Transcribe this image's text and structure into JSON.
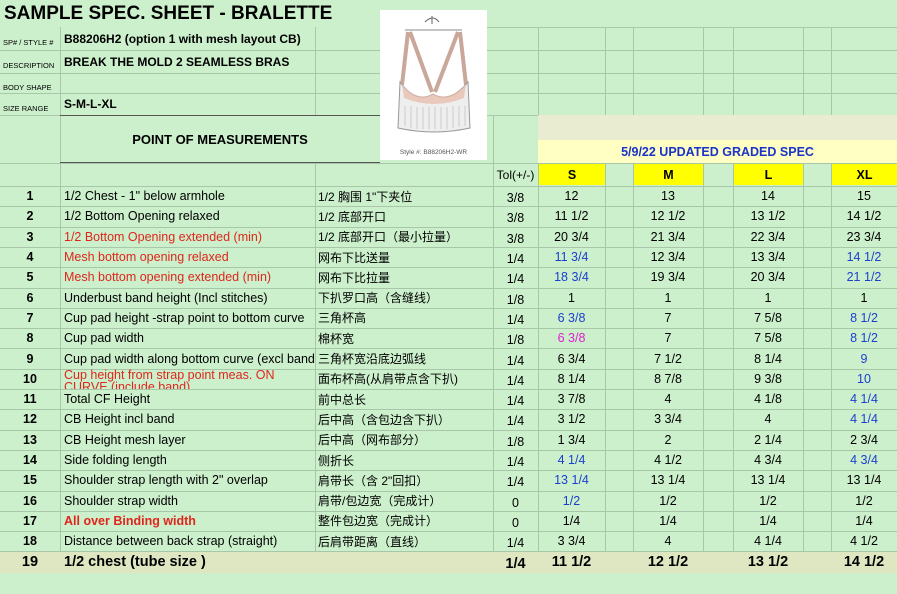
{
  "title": "SAMPLE SPEC. SHEET - BRALETTE",
  "info": [
    {
      "label": "SP# / STYLE #",
      "value": "B88206H2  (option 1 with mesh layout CB)"
    },
    {
      "label": "DESCRIPTION",
      "value": "BREAK THE MOLD 2 SEAMLESS BRAS"
    },
    {
      "label": "BODY SHAPE"
    },
    {
      "label": "SIZE RANGE",
      "value": "S-M-L-XL"
    }
  ],
  "image_caption": "Style #: B88206H2-WR",
  "pom_header": "POINT OF MEASUREMENTS",
  "graded_note": "5/9/22 UPDATED GRADED SPEC",
  "tol_header": "Tol(+/-)",
  "sizes": [
    "S",
    "M",
    "L",
    "XL"
  ],
  "rows": [
    {
      "no": "1",
      "en": "1/2 Chest - 1\" below armhole",
      "cn": "1/2 胸围 1\"下夹位",
      "tol": "3/8",
      "values": [
        "12",
        "13",
        "14",
        "15"
      ]
    },
    {
      "no": "2",
      "en": "1/2 Bottom Opening relaxed",
      "cn": "1/2 底部开口",
      "tol": "3/8",
      "values": [
        "11 1/2",
        "12 1/2",
        "13 1/2",
        "14 1/2"
      ]
    },
    {
      "no": "3",
      "en": "1/2 Bottom Opening extended (min)",
      "cn": "1/2 底部开口（最小拉量）",
      "tol": "3/8",
      "values": [
        "20 3/4",
        "21 3/4",
        "22 3/4",
        "23 3/4"
      ],
      "en_color": "#e0261c"
    },
    {
      "no": "4",
      "en": "Mesh bottom opening relaxed",
      "cn": "网布下比送量",
      "tol": "1/4",
      "values": [
        "11 3/4",
        "12 3/4",
        "13 3/4",
        "14 1/2"
      ],
      "en_color": "#e0261c",
      "value_colors": [
        "#1c3fd0",
        null,
        null,
        "#1c3fd0"
      ]
    },
    {
      "no": "5",
      "en": "Mesh bottom opening extended (min)",
      "cn": "网布下比拉量",
      "tol": "1/4",
      "values": [
        "18 3/4",
        "19 3/4",
        "20 3/4",
        "21 1/2"
      ],
      "en_color": "#e0261c",
      "value_colors": [
        "#1c3fd0",
        null,
        null,
        "#1c3fd0"
      ]
    },
    {
      "no": "6",
      "en": "Underbust band height (Incl stitches)",
      "cn": "下扒罗口高（含缝线）",
      "tol": "1/8",
      "values": [
        "1",
        "1",
        "1",
        "1"
      ]
    },
    {
      "no": "7",
      "en": "Cup pad height -strap point to bottom curve",
      "cn": "三角杯高",
      "tol": "1/4",
      "values": [
        "6 3/8",
        "7",
        "7 5/8",
        "8 1/2"
      ],
      "value_colors": [
        "#1c3fd0",
        null,
        null,
        "#1c3fd0"
      ]
    },
    {
      "no": "8",
      "en": "Cup pad width",
      "cn": "棉杯宽",
      "tol": "1/8",
      "values": [
        "6 3/8",
        "7",
        "7 5/8",
        "8 1/2"
      ],
      "value_colors": [
        "#e020d0",
        null,
        null,
        "#1c3fd0"
      ]
    },
    {
      "no": "9",
      "en": "Cup pad width along bottom curve (excl band)",
      "cn": "三角杯宽沿底边弧线",
      "tol": "1/4",
      "values": [
        "6 3/4",
        "7 1/2",
        "8 1/4",
        "9"
      ],
      "value_colors": [
        null,
        null,
        null,
        "#1c3fd0"
      ]
    },
    {
      "no": "10",
      "en": "Cup height from strap point  meas. ON CURVE (include band)",
      "cn": "面布杯高(从肩带点含下扒)",
      "tol": "1/4",
      "values": [
        "8 1/4",
        "8 7/8",
        "9 3/8",
        "10"
      ],
      "en_color": "#e0261c",
      "value_colors": [
        null,
        null,
        null,
        "#1c3fd0"
      ]
    },
    {
      "no": "11",
      "en": "Total CF Height",
      "cn": "前中总长",
      "tol": "1/4",
      "values": [
        "3 7/8",
        "4",
        "4 1/8",
        "4 1/4"
      ],
      "value_colors": [
        null,
        null,
        null,
        "#1c3fd0"
      ]
    },
    {
      "no": "12",
      "en": "CB Height incl band",
      "cn": "后中高（含包边含下扒）",
      "tol": "1/4",
      "values": [
        "3 1/2",
        "3 3/4",
        "4",
        "4 1/4"
      ],
      "value_colors": [
        null,
        null,
        null,
        "#1c3fd0"
      ]
    },
    {
      "no": "13",
      "en": "CB Height mesh layer",
      "cn": "后中高（网布部分）",
      "tol": "1/8",
      "values": [
        "1 3/4",
        "2",
        "2 1/4",
        "2 3/4"
      ]
    },
    {
      "no": "14",
      "en": "Side folding length",
      "cn": "侧折长",
      "tol": "1/4",
      "values": [
        "4 1/4",
        "4 1/2",
        "4 3/4",
        "4 3/4"
      ],
      "value_colors": [
        "#1c3fd0",
        null,
        null,
        "#1c3fd0"
      ]
    },
    {
      "no": "15",
      "en": "Shoulder strap length with 2\" overlap",
      "cn": "肩带长（含 2\"回扣）",
      "tol": "1/4",
      "values": [
        "13 1/4",
        "13 1/4",
        "13 1/4",
        "13 1/4"
      ],
      "value_colors": [
        "#1c3fd0",
        null,
        null,
        null
      ]
    },
    {
      "no": "16",
      "en": "Shoulder strap width",
      "cn": "肩带/包边宽（完成计）",
      "tol": "0",
      "values": [
        "1/2",
        "1/2",
        "1/2",
        "1/2"
      ],
      "value_colors": [
        "#1c3fd0",
        null,
        null,
        null
      ]
    },
    {
      "no": "17",
      "en": "All over Binding width",
      "cn": "整件包边宽（完成计）",
      "tol": "0",
      "values": [
        "1/4",
        "1/4",
        "1/4",
        "1/4"
      ],
      "en_color": "#e0261c",
      "en_bold": true
    },
    {
      "no": "18",
      "en": "Distance between back strap (straight)",
      "cn": "后肩带距离（直线）",
      "tol": "1/4",
      "values": [
        "3 3/4",
        "4",
        "4 1/4",
        "4 1/2"
      ]
    },
    {
      "no": "19",
      "en": "1/2 chest (tube size )",
      "tol": "1/4",
      "values": [
        "11 1/2",
        "12 1/2",
        "13 1/2",
        "14 1/2"
      ],
      "bold": true
    }
  ]
}
